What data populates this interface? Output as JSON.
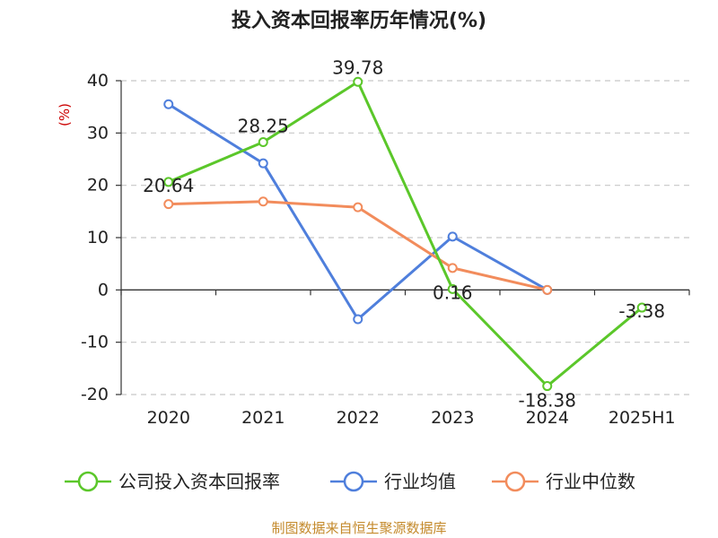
{
  "chart_data": {
    "type": "line",
    "title": "投入资本回报率历年情况(%)",
    "ylabel": "(%)",
    "categories": [
      "2020",
      "2021",
      "2022",
      "2023",
      "2024",
      "2025H1"
    ],
    "ylim": [
      -20,
      40
    ],
    "yticks": [
      40,
      30,
      20,
      10,
      0,
      -10,
      -20
    ],
    "ytick_labels": [
      "40",
      "30",
      "20",
      "10",
      "0",
      "-10",
      "-20"
    ],
    "grid": true,
    "legend_position": "bottom",
    "series": [
      {
        "name": "公司投入资本回报率",
        "color": "#5bc72a",
        "values": [
          20.64,
          28.25,
          39.78,
          0.16,
          -18.38,
          -3.38
        ],
        "labels": [
          "20.64",
          "28.25",
          "39.78",
          "0.16",
          "-18.38",
          "-3.38"
        ]
      },
      {
        "name": "行业均值",
        "color": "#4f7fdc",
        "values": [
          35.5,
          24.2,
          -5.6,
          10.2,
          0.0,
          null
        ]
      },
      {
        "name": "行业中位数",
        "color": "#f28c5c",
        "values": [
          16.4,
          16.9,
          15.8,
          4.2,
          0.0,
          null
        ]
      }
    ],
    "source": "制图数据来自恒生聚源数据库"
  }
}
